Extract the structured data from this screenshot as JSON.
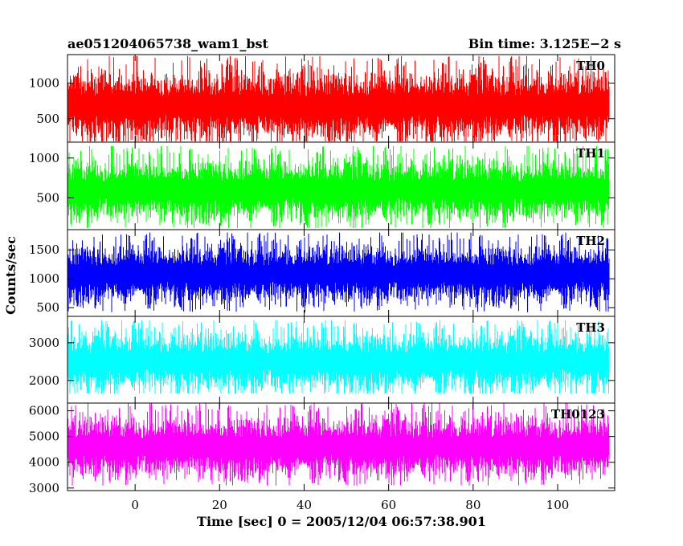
{
  "chart_data": {
    "type": "line",
    "title": "ae051204065738_wam1_bst",
    "bin_time_label": "Bin time: 3.125E−2 s",
    "xlabel": "Time [sec] 0 = 2005/12/04 06:57:38.901",
    "ylabel": "Counts/sec",
    "xlim": [
      -16,
      113.5
    ],
    "data_x_range": [
      -15.9,
      112.2
    ],
    "x_ticks": [
      0,
      20,
      40,
      60,
      80,
      100
    ],
    "x_tick_labels": [
      "0",
      "20",
      "40",
      "60",
      "80",
      "100"
    ],
    "grid": false,
    "panels": [
      {
        "name": "TH0",
        "color": "#ff0000",
        "ylim": [
          170,
          1400
        ],
        "y_ticks": [
          500,
          1000
        ],
        "y_tick_labels": [
          "500",
          "1000"
        ],
        "series": [
          {
            "name": "TH0",
            "mean": 680,
            "min": 180,
            "max": 1380
          }
        ]
      },
      {
        "name": "TH1",
        "color": "#00ff00",
        "ylim": [
          100,
          1200
        ],
        "y_ticks": [
          500,
          1000
        ],
        "y_tick_labels": [
          "500",
          "1000"
        ],
        "series": [
          {
            "name": "TH1",
            "mean": 600,
            "min": 120,
            "max": 1150
          }
        ]
      },
      {
        "name": "TH2",
        "color": "#0000ff",
        "ylim": [
          350,
          1850
        ],
        "y_ticks": [
          500,
          1000,
          1500
        ],
        "y_tick_labels": [
          "500",
          "1000",
          "1500"
        ],
        "series": [
          {
            "name": "TH2",
            "mean": 1080,
            "min": 400,
            "max": 1800
          }
        ]
      },
      {
        "name": "TH3",
        "color": "#00ffff",
        "ylim": [
          1400,
          3700
        ],
        "y_ticks": [
          2000,
          3000
        ],
        "y_tick_labels": [
          "2000",
          "3000"
        ],
        "series": [
          {
            "name": "TH3",
            "mean": 2500,
            "min": 1650,
            "max": 3600
          }
        ]
      },
      {
        "name": "TH0123",
        "color": "#ff00ff",
        "ylim": [
          2900,
          6300
        ],
        "y_ticks": [
          3000,
          4000,
          5000,
          6000
        ],
        "y_tick_labels": [
          "3000",
          "4000",
          "5000",
          "6000"
        ],
        "series": [
          {
            "name": "TH0123",
            "mean": 4600,
            "min": 3100,
            "max": 6300
          }
        ]
      }
    ]
  }
}
